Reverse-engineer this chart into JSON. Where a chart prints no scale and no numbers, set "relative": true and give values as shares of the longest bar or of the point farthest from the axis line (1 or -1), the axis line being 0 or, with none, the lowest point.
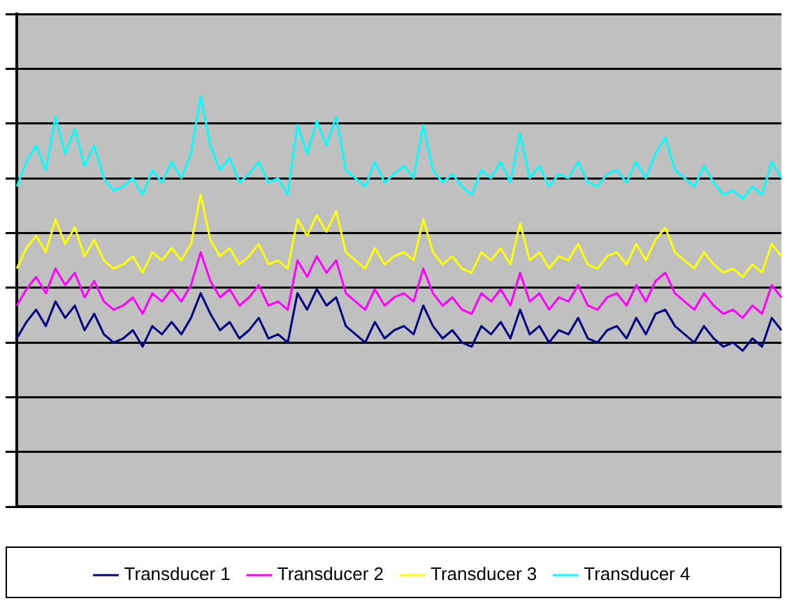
{
  "chart_data": {
    "type": "line",
    "relative": true,
    "grid": "y",
    "legend": "bottom",
    "marker": "none",
    "line_style": "solid",
    "categories": [
      null,
      null,
      null,
      null,
      null,
      null,
      null,
      null,
      null,
      null,
      null,
      null,
      null,
      null,
      null,
      null,
      null,
      null,
      null,
      null,
      null,
      null,
      null,
      null,
      null,
      null,
      null,
      null,
      null,
      null,
      null,
      null,
      null,
      null,
      null,
      null,
      null,
      null,
      null,
      null,
      null,
      null,
      null,
      null,
      null,
      null,
      null,
      null,
      null,
      null,
      null,
      null,
      null,
      null,
      null,
      null,
      null,
      null,
      null,
      null,
      null,
      null,
      null,
      null,
      null,
      null,
      null,
      null,
      null,
      null,
      null,
      null,
      null,
      null,
      null,
      null,
      null,
      null,
      null,
      null
    ],
    "series": [
      {
        "name": "Transducer 1",
        "color": "#000080",
        "values": [
          0.41,
          0.45,
          0.48,
          0.44,
          0.5,
          0.46,
          0.49,
          0.43,
          0.47,
          0.42,
          0.4,
          0.41,
          0.43,
          0.39,
          0.44,
          0.42,
          0.45,
          0.42,
          0.46,
          0.52,
          0.47,
          0.43,
          0.45,
          0.41,
          0.43,
          0.46,
          0.41,
          0.42,
          0.4,
          0.52,
          0.48,
          0.53,
          0.49,
          0.51,
          0.44,
          0.42,
          0.4,
          0.45,
          0.41,
          0.43,
          0.44,
          0.42,
          0.49,
          0.44,
          0.41,
          0.43,
          0.4,
          0.39,
          0.44,
          0.42,
          0.45,
          0.41,
          0.48,
          0.42,
          0.44,
          0.4,
          0.43,
          0.42,
          0.46,
          0.41,
          0.4,
          0.43,
          0.44,
          0.41,
          0.46,
          0.42,
          0.47,
          0.48,
          0.44,
          0.42,
          0.4,
          0.44,
          0.41,
          0.39,
          0.4,
          0.38,
          0.41,
          0.39,
          0.46,
          0.43
        ]
      },
      {
        "name": "Transducer 2",
        "color": "#ff00ff",
        "values": [
          0.49,
          0.53,
          0.56,
          0.52,
          0.58,
          0.54,
          0.57,
          0.51,
          0.55,
          0.5,
          0.48,
          0.49,
          0.51,
          0.47,
          0.52,
          0.5,
          0.53,
          0.5,
          0.54,
          0.62,
          0.55,
          0.51,
          0.53,
          0.49,
          0.51,
          0.54,
          0.49,
          0.5,
          0.48,
          0.6,
          0.56,
          0.61,
          0.57,
          0.6,
          0.52,
          0.5,
          0.48,
          0.53,
          0.49,
          0.51,
          0.52,
          0.5,
          0.58,
          0.52,
          0.49,
          0.51,
          0.48,
          0.47,
          0.52,
          0.5,
          0.53,
          0.49,
          0.57,
          0.5,
          0.52,
          0.48,
          0.51,
          0.5,
          0.54,
          0.49,
          0.48,
          0.51,
          0.52,
          0.49,
          0.54,
          0.5,
          0.55,
          0.57,
          0.52,
          0.5,
          0.48,
          0.52,
          0.49,
          0.47,
          0.48,
          0.46,
          0.49,
          0.47,
          0.54,
          0.51
        ]
      },
      {
        "name": "Transducer 3",
        "color": "#ffff00",
        "values": [
          0.58,
          0.63,
          0.66,
          0.62,
          0.7,
          0.64,
          0.68,
          0.61,
          0.65,
          0.6,
          0.58,
          0.59,
          0.61,
          0.57,
          0.62,
          0.6,
          0.63,
          0.6,
          0.64,
          0.76,
          0.65,
          0.61,
          0.63,
          0.59,
          0.61,
          0.64,
          0.59,
          0.6,
          0.58,
          0.7,
          0.66,
          0.71,
          0.67,
          0.72,
          0.62,
          0.6,
          0.58,
          0.63,
          0.59,
          0.61,
          0.62,
          0.6,
          0.7,
          0.62,
          0.59,
          0.61,
          0.58,
          0.57,
          0.62,
          0.6,
          0.63,
          0.59,
          0.69,
          0.6,
          0.62,
          0.58,
          0.61,
          0.6,
          0.64,
          0.59,
          0.58,
          0.61,
          0.62,
          0.59,
          0.64,
          0.6,
          0.65,
          0.68,
          0.62,
          0.6,
          0.58,
          0.62,
          0.59,
          0.57,
          0.58,
          0.56,
          0.59,
          0.57,
          0.64,
          0.61
        ]
      },
      {
        "name": "Transducer 4",
        "color": "#00ffff",
        "values": [
          0.78,
          0.84,
          0.88,
          0.82,
          0.95,
          0.86,
          0.92,
          0.83,
          0.88,
          0.8,
          0.77,
          0.78,
          0.8,
          0.76,
          0.82,
          0.79,
          0.84,
          0.8,
          0.86,
          1.0,
          0.88,
          0.82,
          0.85,
          0.79,
          0.81,
          0.84,
          0.79,
          0.8,
          0.76,
          0.93,
          0.86,
          0.94,
          0.88,
          0.95,
          0.82,
          0.8,
          0.78,
          0.84,
          0.79,
          0.81,
          0.83,
          0.8,
          0.93,
          0.82,
          0.79,
          0.81,
          0.78,
          0.76,
          0.82,
          0.8,
          0.84,
          0.79,
          0.91,
          0.8,
          0.83,
          0.78,
          0.81,
          0.8,
          0.84,
          0.79,
          0.78,
          0.81,
          0.82,
          0.79,
          0.84,
          0.8,
          0.86,
          0.9,
          0.82,
          0.8,
          0.78,
          0.83,
          0.79,
          0.76,
          0.77,
          0.75,
          0.78,
          0.76,
          0.84,
          0.8
        ]
      }
    ]
  }
}
